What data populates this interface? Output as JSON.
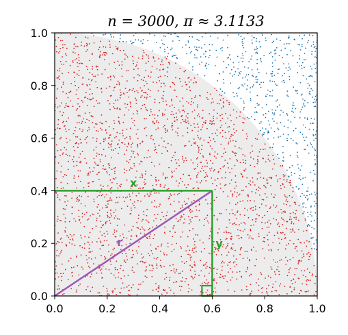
{
  "chart_data": {
    "type": "scatter",
    "title": "n = 3000, π ≈ 3.1133",
    "n": 3000,
    "pi_estimate": 3.1133,
    "xlim": [
      0,
      1
    ],
    "ylim": [
      0,
      1
    ],
    "xticks": [
      "0.0",
      "0.2",
      "0.4",
      "0.6",
      "0.8",
      "1.0"
    ],
    "yticks": [
      "0.0",
      "0.2",
      "0.4",
      "0.6",
      "0.8",
      "1.0"
    ],
    "xlabel": "",
    "ylabel": "",
    "grid": false,
    "series": [
      {
        "inside_circle": true,
        "color": "#d62728",
        "count_approx": 2335
      },
      {
        "inside_circle": false,
        "color": "#1f77b4",
        "count_approx": 665
      }
    ],
    "quarter_circle": {
      "center": [
        0,
        0
      ],
      "radius": 1,
      "fill_color": "#ececec"
    },
    "annotations": {
      "example_point": [
        0.6,
        0.4
      ],
      "x_label": "x",
      "y_label": "y",
      "r_label": "r",
      "leg_color": "#2ca02c",
      "radius_color": "#9b59b6",
      "right_angle_marker": true
    }
  }
}
